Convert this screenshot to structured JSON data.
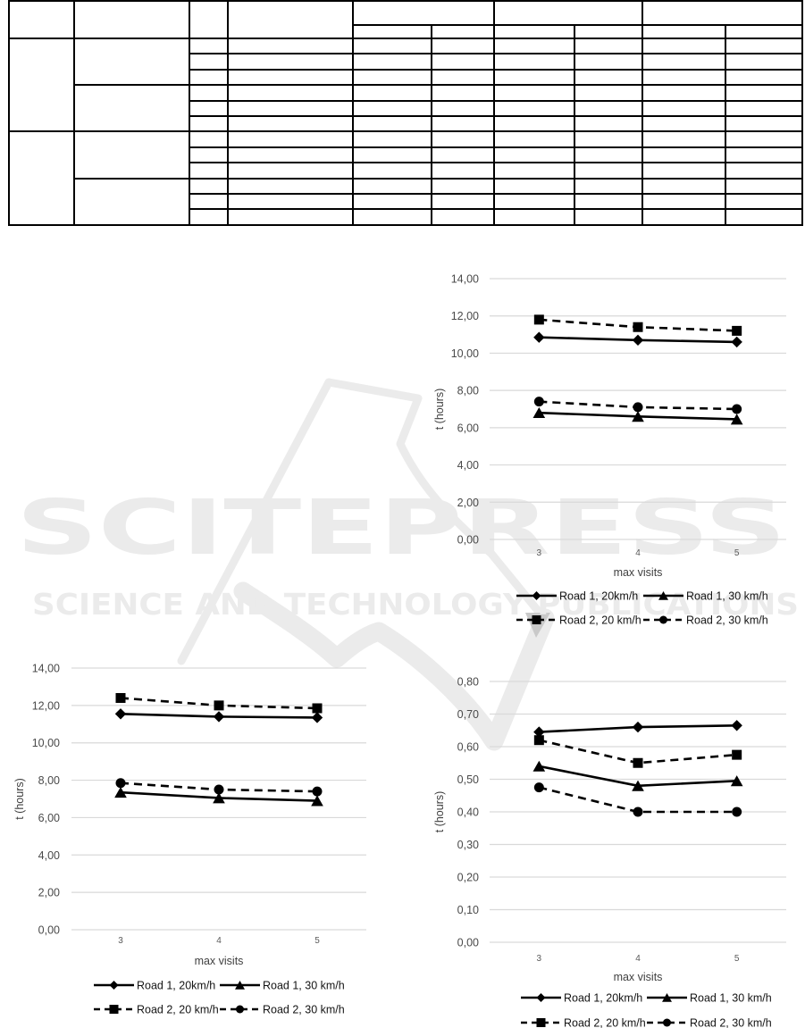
{
  "watermark": {
    "title": "SCITEPRESS",
    "subtitle": "SCIENCE AND TECHNOLOGY PUBLICATIONS",
    "color": "#ebebeb"
  },
  "table": {
    "columns": 10,
    "header_rows": 2,
    "body_rows": 12,
    "all_cells_empty": true
  },
  "colors": {
    "series": "#000000",
    "gridline": "#d9d9d9",
    "tick_label": "#4a4a4a",
    "axis_title": "#3f3f3f",
    "legend_text": "#141414"
  },
  "chart_data": [
    {
      "type": "line",
      "position": "top-right",
      "title": "",
      "categories": [
        "3",
        "4",
        "5"
      ],
      "xlabel": "max visits",
      "ylabel": "t (hours)",
      "ylim": [
        0,
        14
      ],
      "ytick_step": 2,
      "ytick_labels_top_to_bottom": [
        "14,00",
        "12,00",
        "10,00",
        "8,00",
        "6,00",
        "4,00",
        "2,00",
        "0,00"
      ],
      "grid": true,
      "legend_position": "bottom",
      "series": [
        {
          "name": "Road 1, 20km/h",
          "marker": "diamond",
          "line": "solid",
          "values": [
            10.85,
            10.7,
            10.6
          ]
        },
        {
          "name": "Road 1, 30 km/h",
          "marker": "triangle",
          "line": "solid",
          "values": [
            6.8,
            6.6,
            6.45
          ]
        },
        {
          "name": "Road 2, 20 km/h",
          "marker": "square",
          "line": "dashed",
          "values": [
            11.8,
            11.4,
            11.2
          ]
        },
        {
          "name": "Road 2, 30 km/h",
          "marker": "circle",
          "line": "dashed",
          "values": [
            7.4,
            7.1,
            7.0
          ]
        }
      ]
    },
    {
      "type": "line",
      "position": "bottom-left",
      "title": "",
      "categories": [
        "3",
        "4",
        "5"
      ],
      "xlabel": "max visits",
      "ylabel": "t (hours)",
      "ylim": [
        0,
        14
      ],
      "ytick_step": 2,
      "ytick_labels_top_to_bottom": [
        "14,00",
        "12,00",
        "10,00",
        "8,00",
        "6,00",
        "4,00",
        "2,00",
        "0,00"
      ],
      "grid": true,
      "legend_position": "bottom",
      "series": [
        {
          "name": "Road 1, 20km/h",
          "marker": "diamond",
          "line": "solid",
          "values": [
            11.55,
            11.4,
            11.35
          ]
        },
        {
          "name": "Road 1, 30 km/h",
          "marker": "triangle",
          "line": "solid",
          "values": [
            7.35,
            7.05,
            6.9
          ]
        },
        {
          "name": "Road 2, 20 km/h",
          "marker": "square",
          "line": "dashed",
          "values": [
            12.4,
            12.0,
            11.85
          ]
        },
        {
          "name": "Road 2, 30 km/h",
          "marker": "circle",
          "line": "dashed",
          "values": [
            7.85,
            7.5,
            7.4
          ]
        }
      ]
    },
    {
      "type": "line",
      "position": "bottom-right",
      "title": "",
      "categories": [
        "3",
        "4",
        "5"
      ],
      "xlabel": "max visits",
      "ylabel": "t (hours)",
      "ylim": [
        0,
        0.8
      ],
      "ytick_step": 0.1,
      "ytick_labels_top_to_bottom": [
        "0,80",
        "0,70",
        "0,60",
        "0,50",
        "0,40",
        "0,30",
        "0,20",
        "0,10",
        "0,00"
      ],
      "grid": true,
      "legend_position": "bottom",
      "series": [
        {
          "name": "Road 1, 20km/h",
          "marker": "diamond",
          "line": "solid",
          "values": [
            0.645,
            0.66,
            0.665
          ]
        },
        {
          "name": "Road 1, 30 km/h",
          "marker": "triangle",
          "line": "solid",
          "values": [
            0.54,
            0.48,
            0.495
          ]
        },
        {
          "name": "Road 2, 20 km/h",
          "marker": "square",
          "line": "dashed",
          "values": [
            0.62,
            0.55,
            0.575
          ]
        },
        {
          "name": "Road 2, 30 km/h",
          "marker": "circle",
          "line": "dashed",
          "values": [
            0.475,
            0.4,
            0.4
          ]
        }
      ]
    }
  ]
}
